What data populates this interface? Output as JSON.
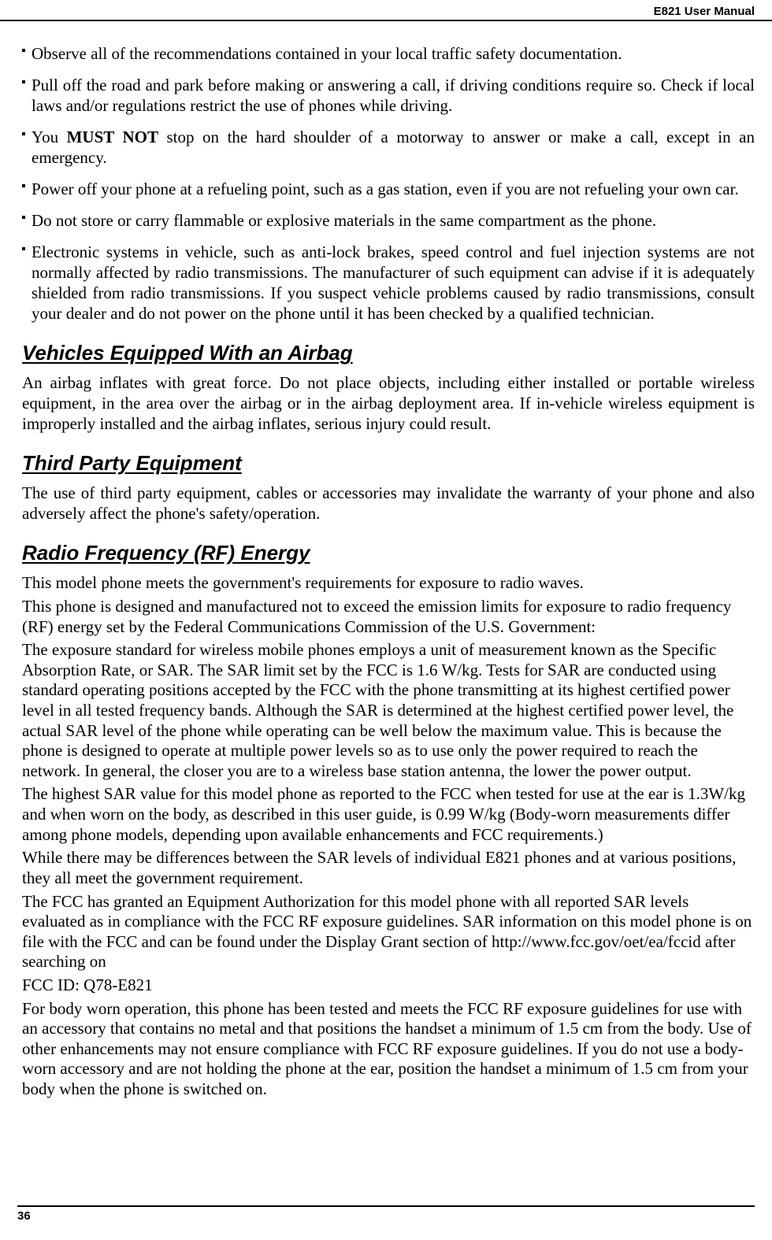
{
  "header": {
    "title": "E821 User Manual"
  },
  "footer": {
    "page_number": "36"
  },
  "safety_list": {
    "item1": "Observe all of the recommendations contained in your local traffic safety documentation.",
    "item2": "Pull off the road and park before making or answering a call, if driving conditions require so. Check if local laws and/or regulations restrict the use of phones while driving.",
    "item3_prefix": "You ",
    "item3_bold": "MUST NOT",
    "item3_suffix": " stop on the hard shoulder of a motorway to answer or make a call, except in an emergency.",
    "item4": "Power off your phone at a refueling point, such as a gas station, even if you are not refueling your own car.",
    "item5": "Do not store or carry flammable or explosive materials in the same compartment as the phone.",
    "item6": "Electronic systems in vehicle, such as anti-lock brakes, speed control and fuel injection systems are not normally affected by radio transmissions. The manufacturer of such equipment can advise if it is adequately shielded from radio transmissions. If you suspect vehicle problems caused by radio transmissions, consult your dealer and do not power on the phone until it has been checked by a qualified technician."
  },
  "sections": {
    "airbag": {
      "heading": "Vehicles Equipped With an Airbag",
      "p1": "An airbag inflates with great force. Do not place objects, including either installed or portable wireless equipment, in the area over the airbag or in the airbag deployment area. If in-vehicle wireless equipment is improperly installed and the airbag inflates, serious injury could result."
    },
    "third_party": {
      "heading": "Third Party Equipment",
      "p1": "The use of third party equipment, cables or accessories may invalidate the warranty of your phone and also adversely affect the phone's safety/operation."
    },
    "rf": {
      "heading": "Radio Frequency (RF) Energy",
      "p1": "This model phone meets the government's requirements for exposure to radio waves.",
      "p2": "This phone is designed and manufactured not to exceed the emission limits for exposure to radio frequency (RF) energy set by the Federal Communications Commission of the U.S. Government:",
      "p3": "The exposure standard for wireless mobile phones employs a unit of measurement known as the Specific Absorption Rate, or SAR. The SAR limit set by the FCC is 1.6 W/kg. Tests for SAR are conducted using standard operating positions accepted by the FCC with the phone transmitting at its highest certified power level in all tested frequency bands. Although the SAR is determined at the highest certified power level, the actual SAR level of the phone while operating can be well below the maximum value. This is because the phone is designed to operate at multiple power levels so as to use only the power required to reach the network. In general, the closer you are to a wireless base station antenna, the lower the power output.",
      "p4": "The highest SAR value for this model phone as reported to the FCC when tested for use at the ear is 1.3W/kg and when worn on the body, as described in this user guide, is 0.99    W/kg (Body-worn measurements differ among phone models, depending upon available enhancements and FCC requirements.)",
      "p5": "While there may be differences between the SAR levels of individual E821 phones and at various positions, they all meet the government requirement.",
      "p6": "The FCC has granted an Equipment Authorization for this model phone with all reported SAR levels evaluated as in compliance with the FCC RF exposure guidelines. SAR information on this model phone is on file with the FCC and can be found under the Display Grant section of http://www.fcc.gov/oet/ea/fccid after searching on",
      "p7": "FCC ID: Q78-E821",
      "p8": "For body worn operation, this phone has been tested and meets the FCC RF exposure guidelines for use with an accessory that contains no metal and that positions the handset a minimum of 1.5 cm from the body. Use of other enhancements may not ensure compliance with FCC RF exposure guidelines. If you do not use a body-worn accessory and are not holding the phone at the ear, position the handset a minimum of 1.5 cm from your body when the phone is switched on."
    }
  },
  "styles": {
    "body_font_size_pt": 21,
    "heading_font_size_pt": 26,
    "header_font_size_pt": 15,
    "text_color": "#000000",
    "background_color": "#ffffff"
  }
}
